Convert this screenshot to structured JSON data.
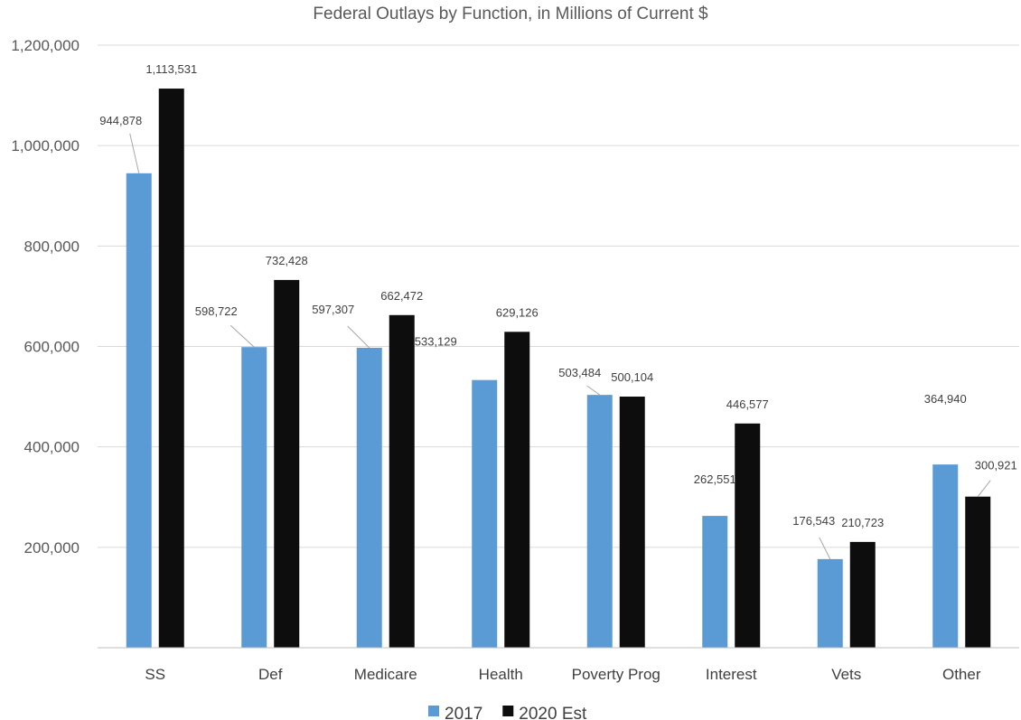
{
  "chart_data": {
    "type": "bar",
    "title": "Federal Outlays by Function, in Millions of Current $",
    "categories": [
      "SS",
      "Def",
      "Medicare",
      "Health",
      "Poverty Prog",
      "Interest",
      "Vets",
      "Other"
    ],
    "series": [
      {
        "name": "2017",
        "color": "#5b9bd5",
        "values": [
          944878,
          598722,
          597307,
          533129,
          503484,
          262551,
          176543,
          364940
        ],
        "labels": [
          "944,878",
          "598,722",
          "597,307",
          "533,129",
          "503,484",
          "262,551",
          "176,543",
          "364,940"
        ]
      },
      {
        "name": "2020 Est",
        "color": "#0d0d0d",
        "values": [
          1113531,
          732428,
          662472,
          629126,
          500104,
          446577,
          210723,
          300921
        ],
        "labels": [
          "1,113,531",
          "732,428",
          "662,472",
          "629,126",
          "500,104",
          "446,577",
          "210,723",
          "300,921"
        ]
      }
    ],
    "y_ticks": [
      200000,
      400000,
      600000,
      800000,
      1000000,
      1200000
    ],
    "y_tick_labels": [
      "200,000",
      "400,000",
      "600,000",
      "800,000",
      "1,000,000",
      "1,200,000"
    ],
    "ylim": [
      0,
      1200000
    ],
    "grid": true,
    "legend_position": "bottom"
  }
}
